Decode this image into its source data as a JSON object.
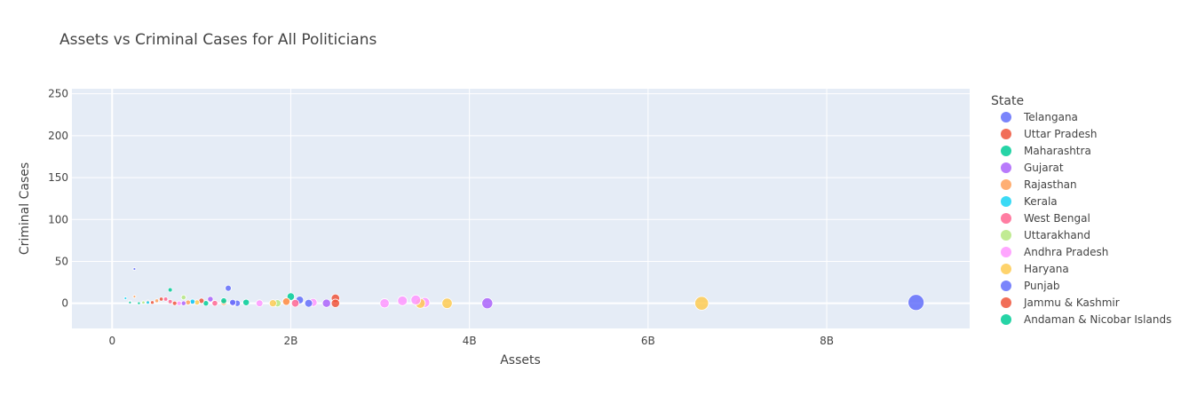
{
  "chart_data": {
    "type": "scatter",
    "title": "Assets vs Criminal Cases for All Politicians",
    "xlabel": "Assets",
    "ylabel": "Criminal Cases",
    "xlim": [
      -450000000,
      9600000000
    ],
    "ylim": [
      -30,
      256
    ],
    "x_ticks": [
      0,
      2000000000,
      4000000000,
      6000000000,
      8000000000
    ],
    "x_tick_labels": [
      "0",
      "2B",
      "4B",
      "6B",
      "8B"
    ],
    "y_ticks": [
      0,
      50,
      100,
      150,
      200,
      250
    ],
    "y_tick_labels": [
      "0",
      "50",
      "100",
      "150",
      "200",
      "250"
    ],
    "grid": true,
    "plot_bgcolor": "#E5ECF6",
    "legend_title": "State",
    "legend_position": "right",
    "series": [
      {
        "name": "Telangana",
        "color": "#636EFA",
        "points": [
          [
            9000000000,
            1
          ],
          [
            1300000000,
            18
          ],
          [
            1400000000,
            0
          ],
          [
            250000000,
            41
          ],
          [
            900000000,
            1
          ],
          [
            2100000000,
            4
          ]
        ]
      },
      {
        "name": "Uttar Pradesh",
        "color": "#EF553B",
        "points": [
          [
            2500000000,
            6
          ],
          [
            2500000000,
            0
          ],
          [
            550000000,
            5
          ],
          [
            400000000,
            2
          ],
          [
            700000000,
            0
          ],
          [
            1950000000,
            2
          ]
        ]
      },
      {
        "name": "Maharashtra",
        "color": "#00CC96",
        "points": [
          [
            2000000000,
            8
          ],
          [
            650000000,
            16
          ],
          [
            1500000000,
            1
          ],
          [
            300000000,
            0
          ],
          [
            1050000000,
            0
          ]
        ]
      },
      {
        "name": "Gujarat",
        "color": "#AB63FA",
        "points": [
          [
            4200000000,
            0
          ],
          [
            2400000000,
            0
          ],
          [
            1350000000,
            0
          ],
          [
            1100000000,
            5
          ],
          [
            800000000,
            0
          ]
        ]
      },
      {
        "name": "Rajasthan",
        "color": "#FFA15A",
        "points": [
          [
            1950000000,
            2
          ],
          [
            500000000,
            3
          ],
          [
            250000000,
            8
          ],
          [
            850000000,
            1
          ],
          [
            1250000000,
            1
          ]
        ]
      },
      {
        "name": "Kerala",
        "color": "#19D3F3",
        "points": [
          [
            400000000,
            1
          ],
          [
            150000000,
            6
          ],
          [
            900000000,
            2
          ]
        ]
      },
      {
        "name": "West Bengal",
        "color": "#FF6692",
        "points": [
          [
            2050000000,
            0
          ],
          [
            650000000,
            2
          ],
          [
            1150000000,
            0
          ],
          [
            600000000,
            5
          ]
        ]
      },
      {
        "name": "Uttarakhand",
        "color": "#B6E880",
        "points": [
          [
            1850000000,
            0
          ],
          [
            800000000,
            7
          ],
          [
            350000000,
            1
          ]
        ]
      },
      {
        "name": "Andhra Pradesh",
        "color": "#FF97FF",
        "points": [
          [
            3400000000,
            4
          ],
          [
            3250000000,
            3
          ],
          [
            3500000000,
            1
          ],
          [
            3050000000,
            0
          ],
          [
            1650000000,
            0
          ],
          [
            2250000000,
            1
          ],
          [
            750000000,
            0
          ]
        ]
      },
      {
        "name": "Haryana",
        "color": "#FECB52",
        "points": [
          [
            6600000000,
            0
          ],
          [
            3750000000,
            0
          ],
          [
            3450000000,
            0
          ],
          [
            1800000000,
            0
          ],
          [
            950000000,
            1
          ]
        ]
      },
      {
        "name": "Punjab",
        "color": "#636EFA",
        "points": [
          [
            2200000000,
            0
          ],
          [
            1350000000,
            1
          ],
          [
            200000000,
            2
          ]
        ]
      },
      {
        "name": "Jammu & Kashmir",
        "color": "#EF553B",
        "points": [
          [
            450000000,
            1
          ],
          [
            1000000000,
            3
          ]
        ]
      },
      {
        "name": "Andaman & Nicobar Islands",
        "color": "#00CC96",
        "points": [
          [
            1250000000,
            3
          ],
          [
            200000000,
            1
          ]
        ]
      }
    ],
    "marker_size_scale": "sqrt(assets)"
  }
}
